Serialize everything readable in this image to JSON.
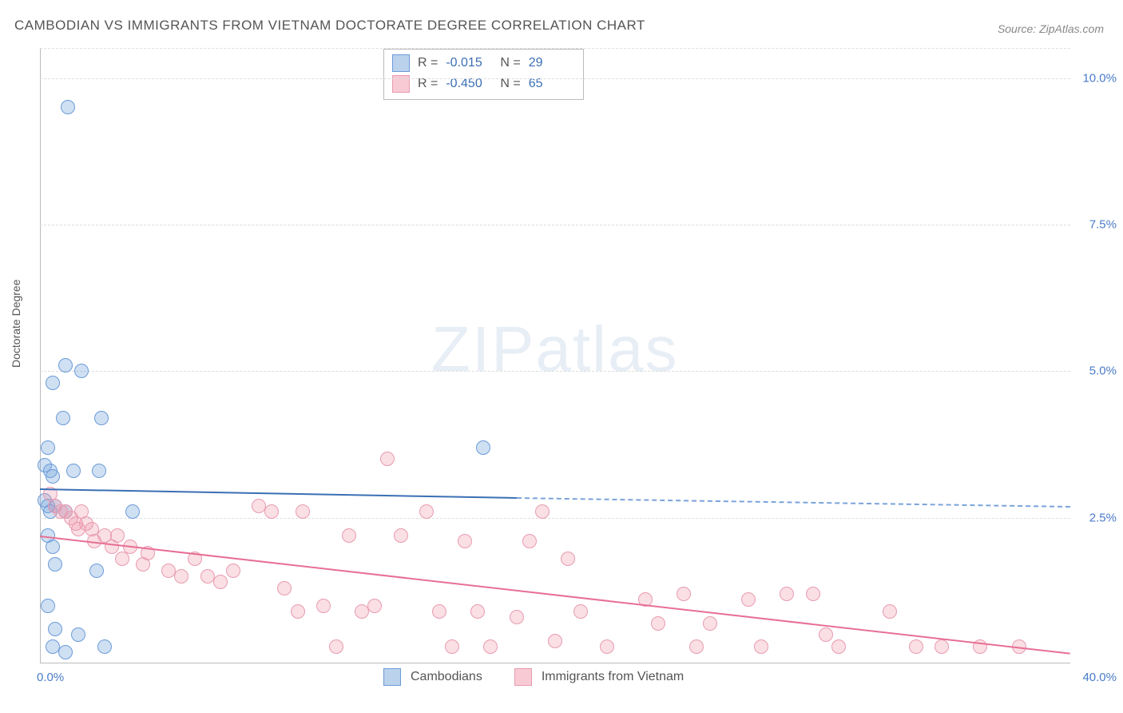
{
  "title": "CAMBODIAN VS IMMIGRANTS FROM VIETNAM DOCTORATE DEGREE CORRELATION CHART",
  "source_label": "Source: ZipAtlas.com",
  "y_axis_label": "Doctorate Degree",
  "watermark_bold": "ZIP",
  "watermark_light": "atlas",
  "chart": {
    "type": "scatter",
    "background_color": "#ffffff",
    "grid_color": "#dddddd",
    "xlim": [
      0,
      40
    ],
    "ylim": [
      0,
      10.5
    ],
    "x_ticks": [
      0,
      40
    ],
    "x_tick_labels": [
      "0.0%",
      "40.0%"
    ],
    "y_ticks": [
      2.5,
      5.0,
      7.5,
      10.0
    ],
    "y_tick_labels": [
      "2.5%",
      "5.0%",
      "7.5%",
      "10.0%"
    ],
    "point_radius": 9,
    "series": [
      {
        "name": "Cambodians",
        "color_fill": "rgba(120,165,220,0.35)",
        "color_stroke": "#6a9bd8",
        "trend_color": "#3b6fb5",
        "R": "-0.015",
        "N": "29",
        "trend": {
          "x1": 0,
          "y1": 3.0,
          "x2": 18.5,
          "y2": 2.85,
          "x2_dash": 40,
          "y2_dash": 2.7
        },
        "points": [
          [
            1.1,
            9.5
          ],
          [
            1.0,
            5.1
          ],
          [
            1.6,
            5.0
          ],
          [
            0.5,
            4.8
          ],
          [
            0.3,
            3.7
          ],
          [
            0.9,
            4.2
          ],
          [
            2.4,
            4.2
          ],
          [
            0.2,
            3.4
          ],
          [
            0.4,
            3.3
          ],
          [
            0.5,
            3.2
          ],
          [
            1.3,
            3.3
          ],
          [
            2.3,
            3.3
          ],
          [
            17.2,
            3.7
          ],
          [
            0.2,
            2.8
          ],
          [
            0.3,
            2.7
          ],
          [
            0.4,
            2.6
          ],
          [
            0.6,
            2.7
          ],
          [
            1.0,
            2.6
          ],
          [
            3.6,
            2.6
          ],
          [
            0.3,
            2.2
          ],
          [
            0.5,
            2.0
          ],
          [
            0.6,
            1.7
          ],
          [
            2.2,
            1.6
          ],
          [
            0.3,
            1.0
          ],
          [
            0.6,
            0.6
          ],
          [
            1.5,
            0.5
          ],
          [
            2.5,
            0.3
          ],
          [
            0.5,
            0.3
          ],
          [
            1.0,
            0.2
          ]
        ]
      },
      {
        "name": "Immigrants from Vietnam",
        "color_fill": "rgba(240,150,170,0.3)",
        "color_stroke": "#e89bb0",
        "trend_color": "#e76f95",
        "R": "-0.450",
        "N": "65",
        "trend": {
          "x1": 0,
          "y1": 2.2,
          "x2": 40,
          "y2": 0.2
        },
        "points": [
          [
            13.5,
            3.5
          ],
          [
            0.4,
            2.9
          ],
          [
            0.6,
            2.7
          ],
          [
            0.8,
            2.6
          ],
          [
            1.0,
            2.6
          ],
          [
            1.2,
            2.5
          ],
          [
            1.4,
            2.4
          ],
          [
            1.5,
            2.3
          ],
          [
            1.6,
            2.6
          ],
          [
            1.8,
            2.4
          ],
          [
            2.0,
            2.3
          ],
          [
            2.1,
            2.1
          ],
          [
            2.5,
            2.2
          ],
          [
            2.8,
            2.0
          ],
          [
            3.0,
            2.2
          ],
          [
            3.2,
            1.8
          ],
          [
            3.5,
            2.0
          ],
          [
            4.0,
            1.7
          ],
          [
            4.2,
            1.9
          ],
          [
            5.0,
            1.6
          ],
          [
            5.5,
            1.5
          ],
          [
            6.0,
            1.8
          ],
          [
            6.5,
            1.5
          ],
          [
            7.0,
            1.4
          ],
          [
            7.5,
            1.6
          ],
          [
            8.5,
            2.7
          ],
          [
            9.0,
            2.6
          ],
          [
            9.5,
            1.3
          ],
          [
            10.2,
            2.6
          ],
          [
            10.0,
            0.9
          ],
          [
            11.0,
            1.0
          ],
          [
            11.5,
            0.3
          ],
          [
            12.0,
            2.2
          ],
          [
            12.5,
            0.9
          ],
          [
            13.0,
            1.0
          ],
          [
            14.0,
            2.2
          ],
          [
            15.0,
            2.6
          ],
          [
            15.5,
            0.9
          ],
          [
            16.0,
            0.3
          ],
          [
            16.5,
            2.1
          ],
          [
            17.0,
            0.9
          ],
          [
            17.5,
            0.3
          ],
          [
            18.5,
            0.8
          ],
          [
            19.5,
            2.6
          ],
          [
            19.0,
            2.1
          ],
          [
            20.0,
            0.4
          ],
          [
            20.5,
            1.8
          ],
          [
            21.0,
            0.9
          ],
          [
            22.0,
            0.3
          ],
          [
            23.5,
            1.1
          ],
          [
            24.0,
            0.7
          ],
          [
            25.0,
            1.2
          ],
          [
            25.5,
            0.3
          ],
          [
            26.0,
            0.7
          ],
          [
            27.5,
            1.1
          ],
          [
            28.0,
            0.3
          ],
          [
            29.0,
            1.2
          ],
          [
            30.0,
            1.2
          ],
          [
            30.5,
            0.5
          ],
          [
            31.0,
            0.3
          ],
          [
            33.0,
            0.9
          ],
          [
            34.0,
            0.3
          ],
          [
            35.0,
            0.3
          ],
          [
            36.5,
            0.3
          ],
          [
            38.0,
            0.3
          ]
        ]
      }
    ]
  },
  "legend": {
    "series1_label": "Cambodians",
    "series2_label": "Immigrants from Vietnam"
  },
  "stat_labels": {
    "r": "R =",
    "n": "N ="
  }
}
